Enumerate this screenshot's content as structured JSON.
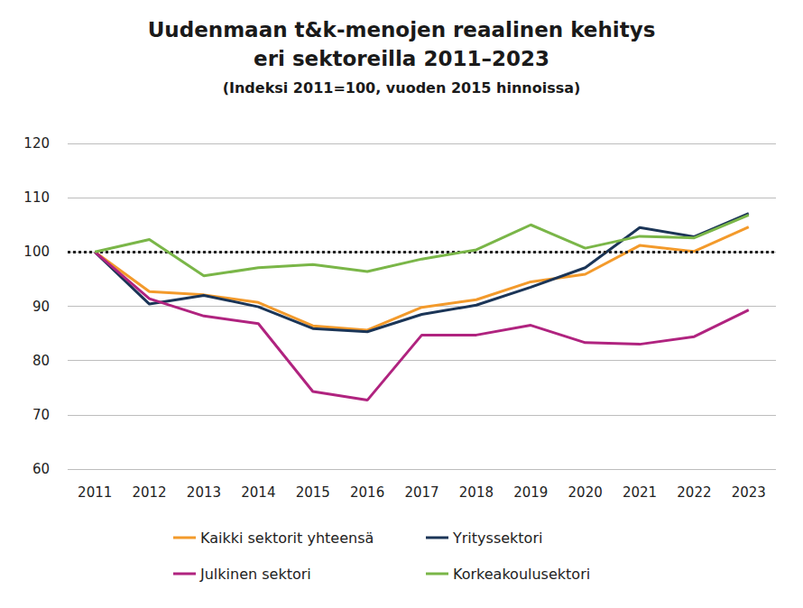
{
  "chart_data": {
    "type": "line",
    "title": "Uudenmaan t&k-menojen reaalinen kehitys\neri sektoreilla 2011–2023",
    "subtitle": "(Indeksi 2011=100, vuoden 2015 hinnoissa)",
    "categories": [
      "2011",
      "2012",
      "2013",
      "2014",
      "2015",
      "2016",
      "2017",
      "2018",
      "2019",
      "2020",
      "2021",
      "2022",
      "2023"
    ],
    "series": [
      {
        "name": "Kaikki sektorit yhteensä",
        "color": "#f39a2b",
        "values": [
          100,
          92.7,
          92.1,
          90.7,
          86.4,
          85.6,
          89.8,
          91.2,
          94.5,
          95.9,
          101.2,
          100.1,
          104.6
        ]
      },
      {
        "name": "Yrityssektori",
        "color": "#1b3557",
        "values": [
          100,
          90.4,
          92.0,
          89.9,
          85.9,
          85.3,
          88.5,
          90.2,
          93.5,
          97.1,
          104.5,
          102.8,
          107.1
        ]
      },
      {
        "name": "Julkinen sektori",
        "color": "#b0237f",
        "values": [
          100,
          91.4,
          88.2,
          86.8,
          74.3,
          72.7,
          84.7,
          84.7,
          86.5,
          83.3,
          83.0,
          84.4,
          89.3
        ]
      },
      {
        "name": "Korkeakoulusektori",
        "color": "#7ab648",
        "values": [
          100,
          102.3,
          95.6,
          97.1,
          97.7,
          96.4,
          98.7,
          100.4,
          105.0,
          100.7,
          102.9,
          102.6,
          106.8
        ]
      }
    ],
    "annotations": [
      {
        "type": "hline",
        "y": 100,
        "line_style": "dotted",
        "color": "#222222"
      }
    ],
    "ylim": [
      60,
      120
    ],
    "yticks": [
      60,
      70,
      80,
      90,
      100,
      110,
      120
    ],
    "grid": true,
    "legend": "bottom"
  }
}
